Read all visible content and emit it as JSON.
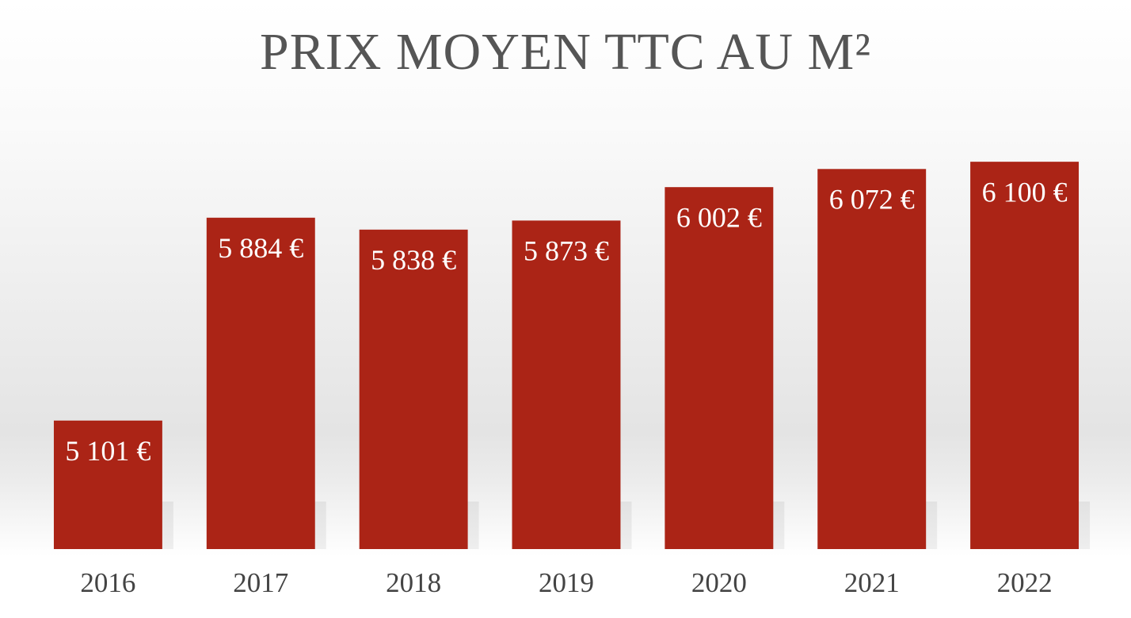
{
  "chart_data": {
    "type": "bar",
    "title": "PRIX MOYEN TTC AU M²",
    "categories": [
      "2016",
      "2017",
      "2018",
      "2019",
      "2020",
      "2021",
      "2022"
    ],
    "values": [
      5101,
      5884,
      5838,
      5873,
      6002,
      6072,
      6100
    ],
    "value_labels": [
      "5 101 €",
      "5 884 €",
      "5 838 €",
      "5 873 €",
      "6 002 €",
      "6 072 €",
      "6 100 €"
    ],
    "color": "#ab2416",
    "ylim": [
      4605,
      6235
    ]
  }
}
